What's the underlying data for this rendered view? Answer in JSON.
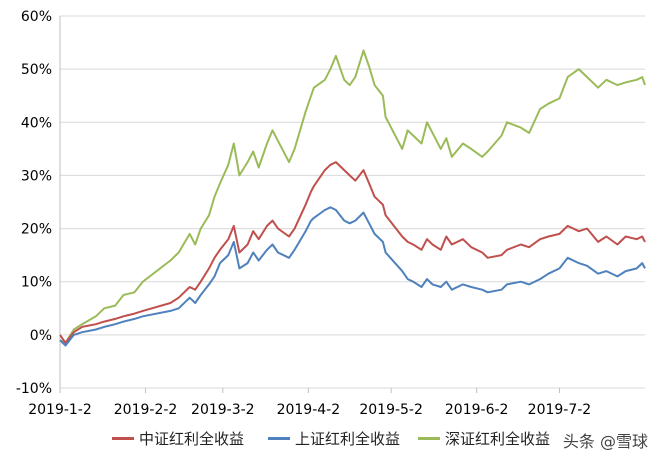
{
  "chart_data": {
    "type": "line",
    "y_ticks": [
      "60%",
      "50%",
      "40%",
      "30%",
      "20%",
      "10%",
      "0%",
      "-10%"
    ],
    "ylim": [
      -10,
      60
    ],
    "x_ticks": [
      "2019-1-2",
      "2019-2-2",
      "2019-3-2",
      "2019-4-2",
      "2019-5-2",
      "2019-6-2",
      "2019-7-2"
    ],
    "grid": "horizontal",
    "legend_position": "bottom",
    "series": [
      {
        "name": "中证红利全收益",
        "color": "#c0504d",
        "points": [
          [
            "2019-01-02",
            0
          ],
          [
            "2019-01-04",
            -1.5
          ],
          [
            "2019-01-07",
            0.5
          ],
          [
            "2019-01-10",
            1.5
          ],
          [
            "2019-01-15",
            2.0
          ],
          [
            "2019-01-18",
            2.5
          ],
          [
            "2019-01-22",
            3.0
          ],
          [
            "2019-01-25",
            3.5
          ],
          [
            "2019-01-29",
            4.0
          ],
          [
            "2019-02-01",
            4.5
          ],
          [
            "2019-02-11",
            6.0
          ],
          [
            "2019-02-14",
            7.0
          ],
          [
            "2019-02-18",
            9.0
          ],
          [
            "2019-02-20",
            8.5
          ],
          [
            "2019-02-22",
            10.0
          ],
          [
            "2019-02-25",
            12.5
          ],
          [
            "2019-02-27",
            14.5
          ],
          [
            "2019-03-01",
            16.0
          ],
          [
            "2019-03-04",
            18.0
          ],
          [
            "2019-03-06",
            20.5
          ],
          [
            "2019-03-08",
            15.5
          ],
          [
            "2019-03-11",
            17.0
          ],
          [
            "2019-03-13",
            19.5
          ],
          [
            "2019-03-15",
            18.0
          ],
          [
            "2019-03-18",
            20.5
          ],
          [
            "2019-03-20",
            21.5
          ],
          [
            "2019-03-22",
            20.0
          ],
          [
            "2019-03-26",
            18.5
          ],
          [
            "2019-03-28",
            20.0
          ],
          [
            "2019-04-01",
            24.5
          ],
          [
            "2019-04-03",
            27.0
          ],
          [
            "2019-04-04",
            28.0
          ],
          [
            "2019-04-08",
            31.0
          ],
          [
            "2019-04-10",
            32.0
          ],
          [
            "2019-04-12",
            32.5
          ],
          [
            "2019-04-15",
            31.0
          ],
          [
            "2019-04-17",
            30.0
          ],
          [
            "2019-04-19",
            29.0
          ],
          [
            "2019-04-22",
            31.0
          ],
          [
            "2019-04-24",
            28.5
          ],
          [
            "2019-04-26",
            26.0
          ],
          [
            "2019-04-29",
            24.5
          ],
          [
            "2019-04-30",
            22.5
          ],
          [
            "2019-05-06",
            18.5
          ],
          [
            "2019-05-08",
            17.5
          ],
          [
            "2019-05-10",
            17.0
          ],
          [
            "2019-05-13",
            16.0
          ],
          [
            "2019-05-15",
            18.0
          ],
          [
            "2019-05-17",
            17.0
          ],
          [
            "2019-05-20",
            16.0
          ],
          [
            "2019-05-22",
            18.5
          ],
          [
            "2019-05-24",
            17.0
          ],
          [
            "2019-05-28",
            18.0
          ],
          [
            "2019-05-31",
            16.5
          ],
          [
            "2019-06-04",
            15.5
          ],
          [
            "2019-06-06",
            14.5
          ],
          [
            "2019-06-11",
            15.0
          ],
          [
            "2019-06-13",
            16.0
          ],
          [
            "2019-06-18",
            17.0
          ],
          [
            "2019-06-21",
            16.5
          ],
          [
            "2019-06-25",
            18.0
          ],
          [
            "2019-06-28",
            18.5
          ],
          [
            "2019-07-02",
            19.0
          ],
          [
            "2019-07-05",
            20.5
          ],
          [
            "2019-07-09",
            19.5
          ],
          [
            "2019-07-12",
            20.0
          ],
          [
            "2019-07-16",
            17.5
          ],
          [
            "2019-07-19",
            18.5
          ],
          [
            "2019-07-23",
            17.0
          ],
          [
            "2019-07-26",
            18.5
          ],
          [
            "2019-07-30",
            18.0
          ],
          [
            "2019-08-01",
            18.5
          ],
          [
            "2019-08-02",
            17.5
          ]
        ]
      },
      {
        "name": "上证红利全收益",
        "color": "#4f81bd",
        "points": [
          [
            "2019-01-02",
            -1.0
          ],
          [
            "2019-01-04",
            -2.0
          ],
          [
            "2019-01-07",
            0.0
          ],
          [
            "2019-01-10",
            0.5
          ],
          [
            "2019-01-15",
            1.0
          ],
          [
            "2019-01-18",
            1.5
          ],
          [
            "2019-01-22",
            2.0
          ],
          [
            "2019-01-25",
            2.5
          ],
          [
            "2019-01-29",
            3.0
          ],
          [
            "2019-02-01",
            3.5
          ],
          [
            "2019-02-11",
            4.5
          ],
          [
            "2019-02-14",
            5.0
          ],
          [
            "2019-02-18",
            7.0
          ],
          [
            "2019-02-20",
            6.0
          ],
          [
            "2019-02-22",
            7.5
          ],
          [
            "2019-02-25",
            9.5
          ],
          [
            "2019-02-27",
            11.0
          ],
          [
            "2019-03-01",
            13.5
          ],
          [
            "2019-03-04",
            15.0
          ],
          [
            "2019-03-06",
            17.5
          ],
          [
            "2019-03-08",
            12.5
          ],
          [
            "2019-03-11",
            13.5
          ],
          [
            "2019-03-13",
            15.5
          ],
          [
            "2019-03-15",
            14.0
          ],
          [
            "2019-03-18",
            16.0
          ],
          [
            "2019-03-20",
            17.0
          ],
          [
            "2019-03-22",
            15.5
          ],
          [
            "2019-03-26",
            14.5
          ],
          [
            "2019-03-28",
            16.0
          ],
          [
            "2019-04-01",
            19.5
          ],
          [
            "2019-04-03",
            21.5
          ],
          [
            "2019-04-04",
            22.0
          ],
          [
            "2019-04-08",
            23.5
          ],
          [
            "2019-04-10",
            24.0
          ],
          [
            "2019-04-12",
            23.5
          ],
          [
            "2019-04-15",
            21.5
          ],
          [
            "2019-04-17",
            21.0
          ],
          [
            "2019-04-19",
            21.5
          ],
          [
            "2019-04-22",
            23.0
          ],
          [
            "2019-04-24",
            21.0
          ],
          [
            "2019-04-26",
            19.0
          ],
          [
            "2019-04-29",
            17.5
          ],
          [
            "2019-04-30",
            15.5
          ],
          [
            "2019-05-06",
            12.0
          ],
          [
            "2019-05-08",
            10.5
          ],
          [
            "2019-05-10",
            10.0
          ],
          [
            "2019-05-13",
            9.0
          ],
          [
            "2019-05-15",
            10.5
          ],
          [
            "2019-05-17",
            9.5
          ],
          [
            "2019-05-20",
            9.0
          ],
          [
            "2019-05-22",
            10.0
          ],
          [
            "2019-05-24",
            8.5
          ],
          [
            "2019-05-28",
            9.5
          ],
          [
            "2019-05-31",
            9.0
          ],
          [
            "2019-06-04",
            8.5
          ],
          [
            "2019-06-06",
            8.0
          ],
          [
            "2019-06-11",
            8.5
          ],
          [
            "2019-06-13",
            9.5
          ],
          [
            "2019-06-18",
            10.0
          ],
          [
            "2019-06-21",
            9.5
          ],
          [
            "2019-06-25",
            10.5
          ],
          [
            "2019-06-28",
            11.5
          ],
          [
            "2019-07-02",
            12.5
          ],
          [
            "2019-07-05",
            14.5
          ],
          [
            "2019-07-09",
            13.5
          ],
          [
            "2019-07-12",
            13.0
          ],
          [
            "2019-07-16",
            11.5
          ],
          [
            "2019-07-19",
            12.0
          ],
          [
            "2019-07-23",
            11.0
          ],
          [
            "2019-07-26",
            12.0
          ],
          [
            "2019-07-30",
            12.5
          ],
          [
            "2019-08-01",
            13.5
          ],
          [
            "2019-08-02",
            12.5
          ]
        ]
      },
      {
        "name": "深证红利全收益",
        "color": "#9bbb59",
        "points": [
          [
            "2019-01-02",
            -1.0
          ],
          [
            "2019-01-04",
            -1.5
          ],
          [
            "2019-01-07",
            1.0
          ],
          [
            "2019-01-10",
            2.0
          ],
          [
            "2019-01-15",
            3.5
          ],
          [
            "2019-01-18",
            5.0
          ],
          [
            "2019-01-22",
            5.5
          ],
          [
            "2019-01-25",
            7.5
          ],
          [
            "2019-01-29",
            8.0
          ],
          [
            "2019-02-01",
            10.0
          ],
          [
            "2019-02-11",
            14.0
          ],
          [
            "2019-02-14",
            15.5
          ],
          [
            "2019-02-18",
            19.0
          ],
          [
            "2019-02-20",
            17.0
          ],
          [
            "2019-02-22",
            20.0
          ],
          [
            "2019-02-25",
            22.5
          ],
          [
            "2019-02-27",
            26.0
          ],
          [
            "2019-03-01",
            28.5
          ],
          [
            "2019-03-04",
            32.0
          ],
          [
            "2019-03-06",
            36.0
          ],
          [
            "2019-03-08",
            30.0
          ],
          [
            "2019-03-11",
            32.5
          ],
          [
            "2019-03-13",
            34.5
          ],
          [
            "2019-03-15",
            31.5
          ],
          [
            "2019-03-18",
            36.0
          ],
          [
            "2019-03-20",
            38.5
          ],
          [
            "2019-03-22",
            36.5
          ],
          [
            "2019-03-26",
            32.5
          ],
          [
            "2019-03-28",
            35.0
          ],
          [
            "2019-04-01",
            42.0
          ],
          [
            "2019-04-03",
            45.0
          ],
          [
            "2019-04-04",
            46.5
          ],
          [
            "2019-04-08",
            48.0
          ],
          [
            "2019-04-10",
            50.0
          ],
          [
            "2019-04-12",
            52.5
          ],
          [
            "2019-04-15",
            48.0
          ],
          [
            "2019-04-17",
            47.0
          ],
          [
            "2019-04-19",
            48.5
          ],
          [
            "2019-04-22",
            53.5
          ],
          [
            "2019-04-24",
            50.5
          ],
          [
            "2019-04-26",
            47.0
          ],
          [
            "2019-04-29",
            45.0
          ],
          [
            "2019-04-30",
            41.0
          ],
          [
            "2019-05-06",
            35.0
          ],
          [
            "2019-05-08",
            38.5
          ],
          [
            "2019-05-10",
            37.5
          ],
          [
            "2019-05-13",
            36.0
          ],
          [
            "2019-05-15",
            40.0
          ],
          [
            "2019-05-17",
            38.0
          ],
          [
            "2019-05-20",
            35.0
          ],
          [
            "2019-05-22",
            37.0
          ],
          [
            "2019-05-24",
            33.5
          ],
          [
            "2019-05-28",
            36.0
          ],
          [
            "2019-05-31",
            35.0
          ],
          [
            "2019-06-04",
            33.5
          ],
          [
            "2019-06-06",
            34.5
          ],
          [
            "2019-06-11",
            37.5
          ],
          [
            "2019-06-13",
            40.0
          ],
          [
            "2019-06-18",
            39.0
          ],
          [
            "2019-06-21",
            38.0
          ],
          [
            "2019-06-25",
            42.5
          ],
          [
            "2019-06-28",
            43.5
          ],
          [
            "2019-07-02",
            44.5
          ],
          [
            "2019-07-05",
            48.5
          ],
          [
            "2019-07-09",
            50.0
          ],
          [
            "2019-07-12",
            48.5
          ],
          [
            "2019-07-16",
            46.5
          ],
          [
            "2019-07-19",
            48.0
          ],
          [
            "2019-07-23",
            47.0
          ],
          [
            "2019-07-26",
            47.5
          ],
          [
            "2019-07-30",
            48.0
          ],
          [
            "2019-08-01",
            48.5
          ],
          [
            "2019-08-02",
            47.0
          ]
        ]
      }
    ]
  },
  "legend": [
    {
      "label": "中证红利全收益",
      "color": "#c0504d"
    },
    {
      "label": "上证红利全收益",
      "color": "#4f81bd"
    },
    {
      "label": "深证红利全收益",
      "color": "#9bbb59"
    }
  ],
  "watermark": "头条 @雪球"
}
